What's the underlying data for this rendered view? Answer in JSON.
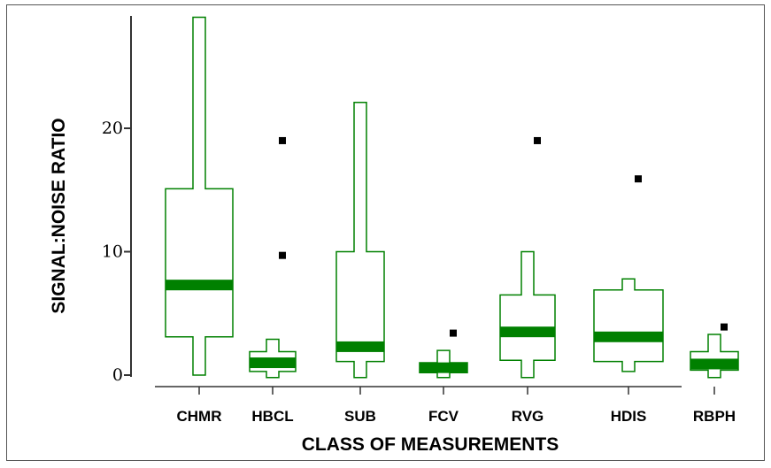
{
  "chart_data": {
    "type": "boxplot",
    "title": "",
    "xlabel": "CLASS OF MEASUREMENTS",
    "ylabel": "SIGNAL:NOISE RATIO",
    "ylim": [
      0,
      29
    ],
    "yticks": [
      0,
      10,
      20
    ],
    "ytick_labels": [
      "0",
      "10",
      "20"
    ],
    "grid": false,
    "box_color": "#008000",
    "median_color": "#008000",
    "outlier_color": "#000000",
    "categories": [
      "CHMR",
      "HBCL",
      "SUB",
      "FCV",
      "RVG",
      "HDIS",
      "RBPH"
    ],
    "boxes": [
      {
        "label": "CHMR",
        "whisker_low": 0,
        "q1": 3.1,
        "median": 7.3,
        "q3": 15.1,
        "whisker_high": 29,
        "outliers": []
      },
      {
        "label": "HBCL",
        "whisker_low": -0.2,
        "q1": 0.3,
        "median": 1.0,
        "q3": 1.9,
        "whisker_high": 2.9,
        "outliers": [
          9.7,
          19
        ]
      },
      {
        "label": "SUB",
        "whisker_low": -0.2,
        "q1": 1.1,
        "median": 2.3,
        "q3": 10.0,
        "whisker_high": 22.1,
        "outliers": []
      },
      {
        "label": "FCV",
        "whisker_low": -0.2,
        "q1": 0.2,
        "median": 0.6,
        "q3": 1.0,
        "whisker_high": 2.0,
        "outliers": [
          3.4
        ]
      },
      {
        "label": "RVG",
        "whisker_low": -0.2,
        "q1": 1.2,
        "median": 3.5,
        "q3": 6.5,
        "whisker_high": 10.0,
        "outliers": [
          19
        ]
      },
      {
        "label": "HDIS",
        "whisker_low": 0.3,
        "q1": 1.1,
        "median": 3.1,
        "q3": 6.9,
        "whisker_high": 7.8,
        "outliers": [
          15.9
        ]
      },
      {
        "label": "RBPH",
        "whisker_low": -0.2,
        "q1": 0.4,
        "median": 0.9,
        "q3": 1.9,
        "whisker_high": 3.3,
        "outliers": [
          3.9
        ]
      }
    ]
  }
}
